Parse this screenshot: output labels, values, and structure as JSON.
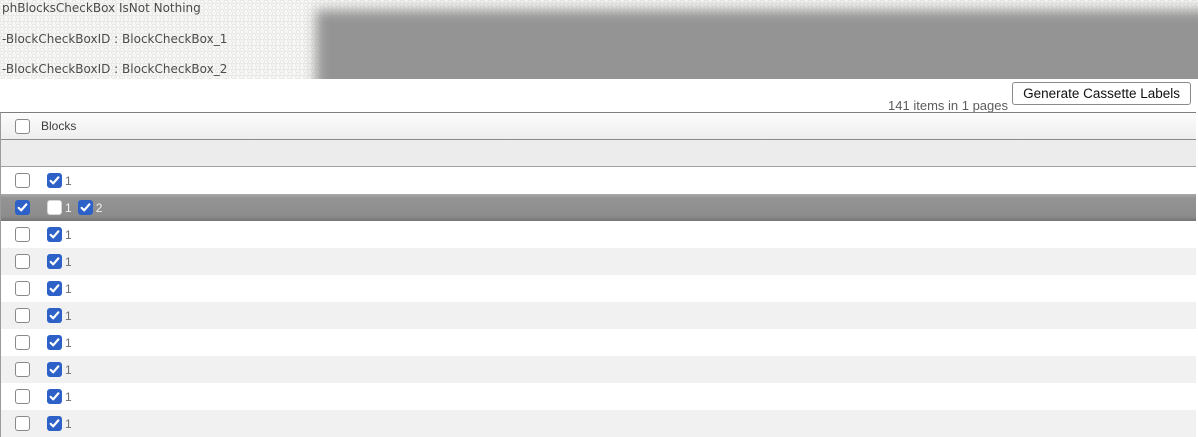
{
  "debug_banner": {
    "lines": [
      "phBlocksCheckBox IsNot Nothing",
      "-BlockCheckBoxID : BlockCheckBox_1",
      "-BlockCheckBoxID : BlockCheckBox_2"
    ]
  },
  "toolbar": {
    "items_summary": "141 items in 1 pages",
    "generate_button_label": "Generate Cassette Labels"
  },
  "grid": {
    "header": {
      "column_label": "Blocks",
      "select_all_checked": false
    },
    "rows": [
      {
        "selected": false,
        "row_checked": false,
        "blocks": [
          {
            "label": "1",
            "checked": true
          }
        ]
      },
      {
        "selected": true,
        "row_checked": true,
        "blocks": [
          {
            "label": "1",
            "checked": false
          },
          {
            "label": "2",
            "checked": true
          }
        ]
      },
      {
        "selected": false,
        "row_checked": false,
        "blocks": [
          {
            "label": "1",
            "checked": true
          }
        ]
      },
      {
        "selected": false,
        "row_checked": false,
        "blocks": [
          {
            "label": "1",
            "checked": true
          }
        ]
      },
      {
        "selected": false,
        "row_checked": false,
        "blocks": [
          {
            "label": "1",
            "checked": true
          }
        ]
      },
      {
        "selected": false,
        "row_checked": false,
        "blocks": [
          {
            "label": "1",
            "checked": true
          }
        ]
      },
      {
        "selected": false,
        "row_checked": false,
        "blocks": [
          {
            "label": "1",
            "checked": true
          }
        ]
      },
      {
        "selected": false,
        "row_checked": false,
        "blocks": [
          {
            "label": "1",
            "checked": true
          }
        ]
      },
      {
        "selected": false,
        "row_checked": false,
        "blocks": [
          {
            "label": "1",
            "checked": true
          }
        ]
      },
      {
        "selected": false,
        "row_checked": false,
        "blocks": [
          {
            "label": "1",
            "checked": true
          }
        ]
      }
    ]
  },
  "colors": {
    "accent_blue": "#2d61c8",
    "banner_gray": "#949494",
    "stripe_row": "#f1f1f1",
    "selected_row_mid": "#8c8c8c"
  }
}
